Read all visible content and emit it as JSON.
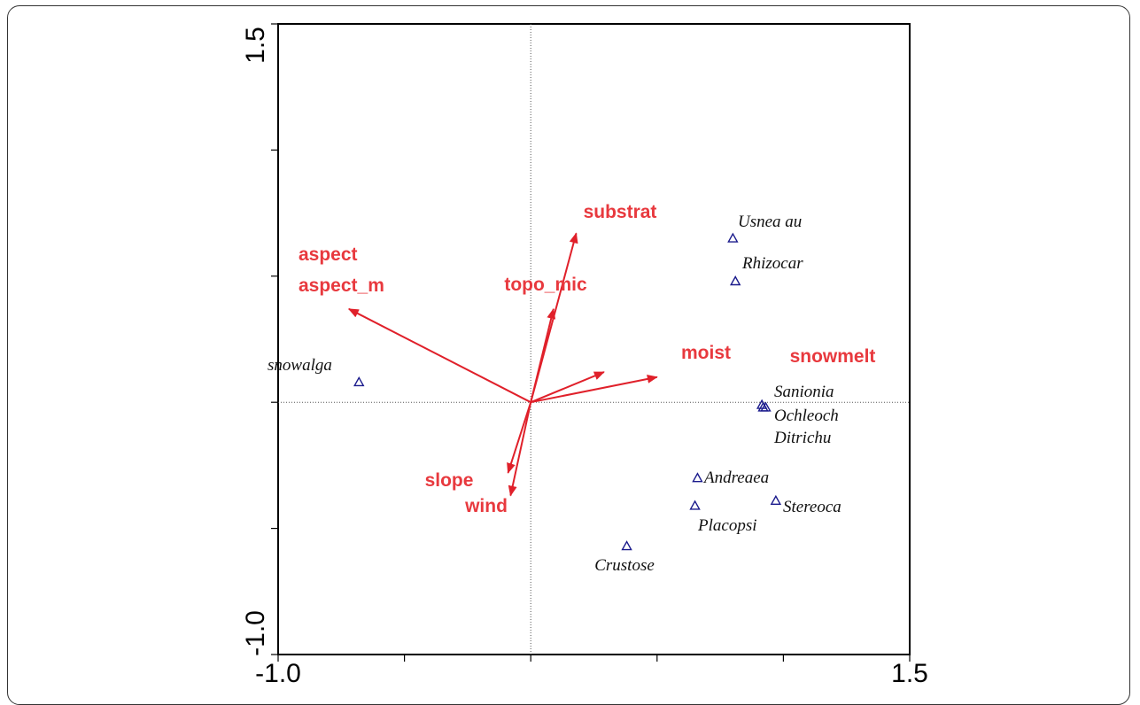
{
  "chart_data": {
    "type": "scatter",
    "subtype": "ordination biplot",
    "title": "",
    "xlabel": "",
    "ylabel": "",
    "xlim": [
      -1.0,
      1.5
    ],
    "ylim": [
      -1.0,
      1.5
    ],
    "x_tick_labels": [
      "-1.0",
      "1.5"
    ],
    "y_tick_labels": [
      "1.5",
      "-1.0"
    ],
    "zero_lines": true,
    "arrow_color": "#e0202a",
    "label_color": "#e8393e",
    "point_color": "#1a1a8c",
    "environmental_variables": [
      {
        "label": "substrat",
        "x": 0.18,
        "y": 0.67,
        "arrow": true
      },
      {
        "label": "topo_mic",
        "x": 0.09,
        "y": 0.37,
        "arrow": true
      },
      {
        "label": "aspect",
        "x": -0.72,
        "y": 0.37,
        "arrow": false
      },
      {
        "label": "aspect_m",
        "x": -0.72,
        "y": 0.37,
        "arrow": true
      },
      {
        "label": "moist",
        "x": 0.29,
        "y": 0.12,
        "arrow": true
      },
      {
        "label": "snowmelt",
        "x": 0.5,
        "y": 0.1,
        "arrow": true
      },
      {
        "label": "slope",
        "x": -0.09,
        "y": -0.28,
        "arrow": true
      },
      {
        "label": "wind",
        "x": -0.08,
        "y": -0.37,
        "arrow": true
      }
    ],
    "species": [
      {
        "label": "Usnea au",
        "x": 0.8,
        "y": 0.65
      },
      {
        "label": "Rhizocar",
        "x": 0.81,
        "y": 0.48
      },
      {
        "label": "snowalga",
        "x": -0.68,
        "y": 0.08
      },
      {
        "label": "Sanionia",
        "x": 0.92,
        "y": -0.02
      },
      {
        "label": "Ochleoch",
        "x": 0.93,
        "y": -0.02
      },
      {
        "label": "Ditrichu",
        "x": 0.915,
        "y": -0.01
      },
      {
        "label": "Andreaea",
        "x": 0.66,
        "y": -0.3
      },
      {
        "label": "Stereoca",
        "x": 0.97,
        "y": -0.39
      },
      {
        "label": "Placopsi",
        "x": 0.65,
        "y": -0.41
      },
      {
        "label": "Crustose",
        "x": 0.38,
        "y": -0.57
      }
    ]
  }
}
